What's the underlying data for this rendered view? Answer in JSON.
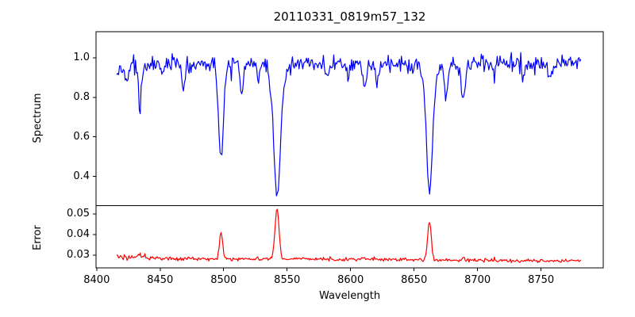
{
  "title": "20110331_0819m57_132",
  "chart_data": {
    "type": "line",
    "title": "20110331_0819m57_132",
    "xlabel": "Wavelength",
    "xlim": [
      8399.5,
      8799
    ],
    "x_ticks": [
      8400,
      8450,
      8500,
      8550,
      8600,
      8650,
      8700,
      8750
    ],
    "x_tick_labels": [
      "8400",
      "8450",
      "8500",
      "8550",
      "8600",
      "8650",
      "8700",
      "8750"
    ],
    "x_data_range": [
      8415.8,
      8782
    ],
    "sample_step": 0.74,
    "grid": false,
    "legend": null,
    "subplots": [
      {
        "name": "spectrum",
        "ylabel": "Spectrum",
        "line_color": "#0000ff",
        "ylim": [
          0.252,
          1.132
        ],
        "y_ticks": [
          0.4,
          0.6,
          0.8,
          1.0
        ],
        "y_tick_labels": [
          "0.4",
          "0.6",
          "0.8",
          "1.0"
        ],
        "continuum": 0.972,
        "left_ramp_until": 8448,
        "left_ramp_per_unit": 0.001,
        "noise_sigma": 0.022,
        "absorption_lines": [
          {
            "center": 8424.0,
            "depth": 0.09,
            "sigma": 1.2
          },
          {
            "center": 8434.0,
            "depth": 0.24,
            "sigma": 1.1
          },
          {
            "center": 8452.0,
            "depth": 0.07,
            "sigma": 1.0
          },
          {
            "center": 8468.4,
            "depth": 0.13,
            "sigma": 1.3
          },
          {
            "center": 8498.0,
            "depth": 0.5,
            "sigma": 2.0
          },
          {
            "center": 8514.1,
            "depth": 0.17,
            "sigma": 1.4
          },
          {
            "center": 8527.0,
            "depth": 0.07,
            "sigma": 1.0
          },
          {
            "center": 8542.1,
            "depth": 0.66,
            "sigma": 2.6
          },
          {
            "center": 8542.1,
            "depth": 0.08,
            "sigma": 6.0
          },
          {
            "center": 8582.0,
            "depth": 0.09,
            "sigma": 1.2
          },
          {
            "center": 8598.0,
            "depth": 0.08,
            "sigma": 1.2
          },
          {
            "center": 8611.0,
            "depth": 0.13,
            "sigma": 1.4
          },
          {
            "center": 8621.0,
            "depth": 0.1,
            "sigma": 1.2
          },
          {
            "center": 8648.0,
            "depth": 0.07,
            "sigma": 1.0
          },
          {
            "center": 8662.1,
            "depth": 0.65,
            "sigma": 2.4
          },
          {
            "center": 8662.1,
            "depth": 0.06,
            "sigma": 5.0
          },
          {
            "center": 8675.0,
            "depth": 0.17,
            "sigma": 1.3
          },
          {
            "center": 8688.6,
            "depth": 0.2,
            "sigma": 1.6
          },
          {
            "center": 8713.0,
            "depth": 0.07,
            "sigma": 1.1
          },
          {
            "center": 8736.0,
            "depth": 0.09,
            "sigma": 1.3
          },
          {
            "center": 8757.0,
            "depth": 0.07,
            "sigma": 1.1
          }
        ]
      },
      {
        "name": "error",
        "ylabel": "Error",
        "line_color": "#ff0000",
        "ylim": [
          0.0238,
          0.054
        ],
        "y_ticks": [
          0.03,
          0.04,
          0.05
        ],
        "y_tick_labels": [
          "0.03",
          "0.04",
          "0.05"
        ],
        "baseline_start": 0.0285,
        "baseline_slope_per_unit": -3.6e-06,
        "left_noisy_until": 8450,
        "left_extra_per_unit": 3e-05,
        "noise_sigma": 0.00042,
        "spikes": [
          {
            "center": 8434.0,
            "amp": 0.0015,
            "sigma": 1.0
          },
          {
            "center": 8498.0,
            "amp": 0.0135,
            "sigma": 1.2
          },
          {
            "center": 8542.1,
            "amp": 0.0245,
            "sigma": 1.6
          },
          {
            "center": 8611.0,
            "amp": 0.0008,
            "sigma": 1.2
          },
          {
            "center": 8662.1,
            "amp": 0.019,
            "sigma": 1.4
          },
          {
            "center": 8688.6,
            "amp": 0.001,
            "sigma": 1.2
          }
        ]
      }
    ]
  }
}
